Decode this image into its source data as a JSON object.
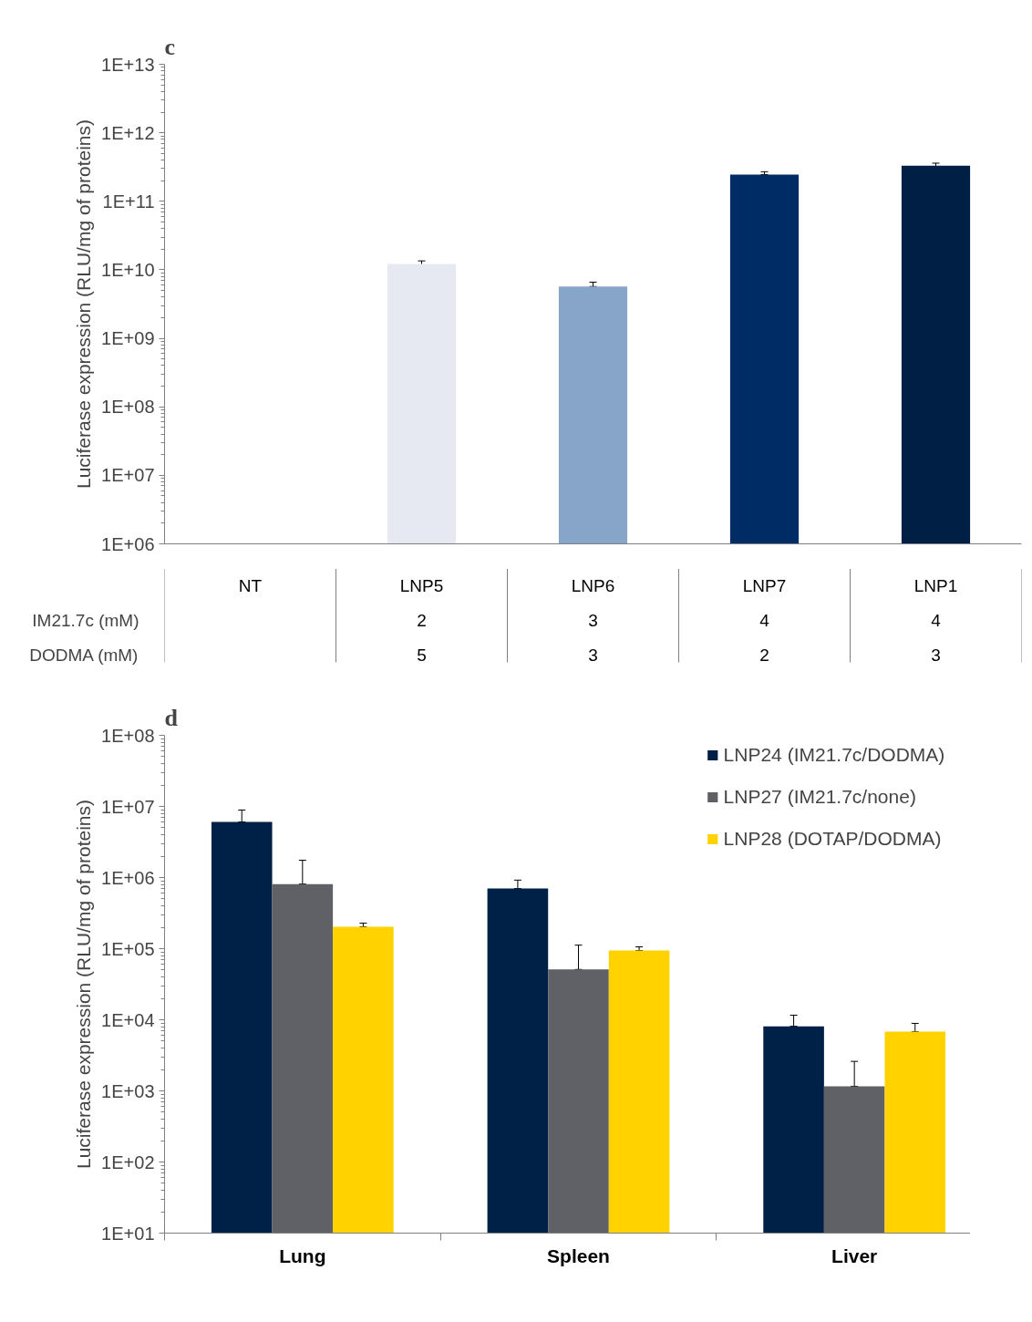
{
  "chart_data": [
    {
      "type": "bar",
      "title": "c",
      "ylabel": "Luciferase expression (RLU/mg of proteins)",
      "log": "y",
      "grid": false,
      "categories": [
        "NT",
        "LNP5",
        "LNP6",
        "LNP7",
        "LNP1"
      ],
      "values": [
        null,
        12200000000.0,
        5700000000.0,
        245000000000.0,
        330000000000.0
      ],
      "colors": [
        "#ffffff",
        "#e6e9f2",
        "#87a5c9",
        "#002c66",
        "#001f45"
      ],
      "errors": [
        null,
        [
          11000000000.0,
          13500000000.0
        ],
        [
          5700000000.0,
          6600000000.0
        ],
        [
          245000000000.0,
          270000000000.0
        ],
        [
          300000000000.0,
          360000000000.0
        ]
      ],
      "ylim": [
        1000000.0,
        10000000000000.0
      ],
      "yticks": [
        {
          "value": 1000000.0,
          "label": "1E+06"
        },
        {
          "value": 10000000.0,
          "label": "1E+07"
        },
        {
          "value": 100000000.0,
          "label": "1E+08"
        },
        {
          "value": 1000000000.0,
          "label": "1E+09"
        },
        {
          "value": 10000000000.0,
          "label": "1E+10"
        },
        {
          "value": 100000000000.0,
          "label": "1E+11"
        },
        {
          "value": 1000000000000.0,
          "label": "1E+12"
        },
        {
          "value": 10000000000000.0,
          "label": "1E+13"
        }
      ],
      "annotations": [
        "IM21.7c (mM)",
        "DODMA (mM)",
        "2",
        "5",
        "3",
        "3",
        "4",
        "2",
        "4",
        "3"
      ]
    },
    {
      "type": "bar",
      "title": "d",
      "ylabel": "Luciferase expression (RLU/mg of proteins)",
      "log": "y",
      "grid": false,
      "legend": "top right",
      "categories": [
        "Lung",
        "Spleen",
        "Liver"
      ],
      "series": [
        {
          "name": "LNP24 (IM21.7c/DODMA)",
          "color": "#002147",
          "values": [
            6050000.0,
            700000.0,
            8100.0
          ],
          "errors": [
            [
              6050000.0,
              8900000.0
            ],
            [
              700000.0,
              920000.0
            ],
            [
              8100.0,
              11600.0
            ]
          ]
        },
        {
          "name": "LNP27 (IM21.7c/none)",
          "color": "#5f6166",
          "values": [
            810000.0,
            51000.0,
            1160.0
          ],
          "errors": [
            [
              810000.0,
              1750000.0
            ],
            [
              51000.0,
              112000.0
            ],
            [
              1160.0,
              2600.0
            ]
          ]
        },
        {
          "name": "LNP28 (DOTAP/DODMA)",
          "color": "#ffd200",
          "values": [
            203000.0,
            94000.0,
            6800.0
          ],
          "errors": [
            [
              203000.0,
              228000.0
            ],
            [
              94000.0,
              106000.0
            ],
            [
              6800.0,
              8900.0
            ]
          ]
        }
      ],
      "ylim": [
        10,
        100000000.0
      ],
      "yticks": [
        {
          "value": 10,
          "label": "1E+01"
        },
        {
          "value": 100,
          "label": "1E+02"
        },
        {
          "value": 1000,
          "label": "1E+03"
        },
        {
          "value": 10000.0,
          "label": "1E+04"
        },
        {
          "value": 100000.0,
          "label": "1E+05"
        },
        {
          "value": 1000000.0,
          "label": "1E+06"
        },
        {
          "value": 10000000.0,
          "label": "1E+07"
        },
        {
          "value": 100000000.0,
          "label": "1E+08"
        }
      ]
    }
  ]
}
